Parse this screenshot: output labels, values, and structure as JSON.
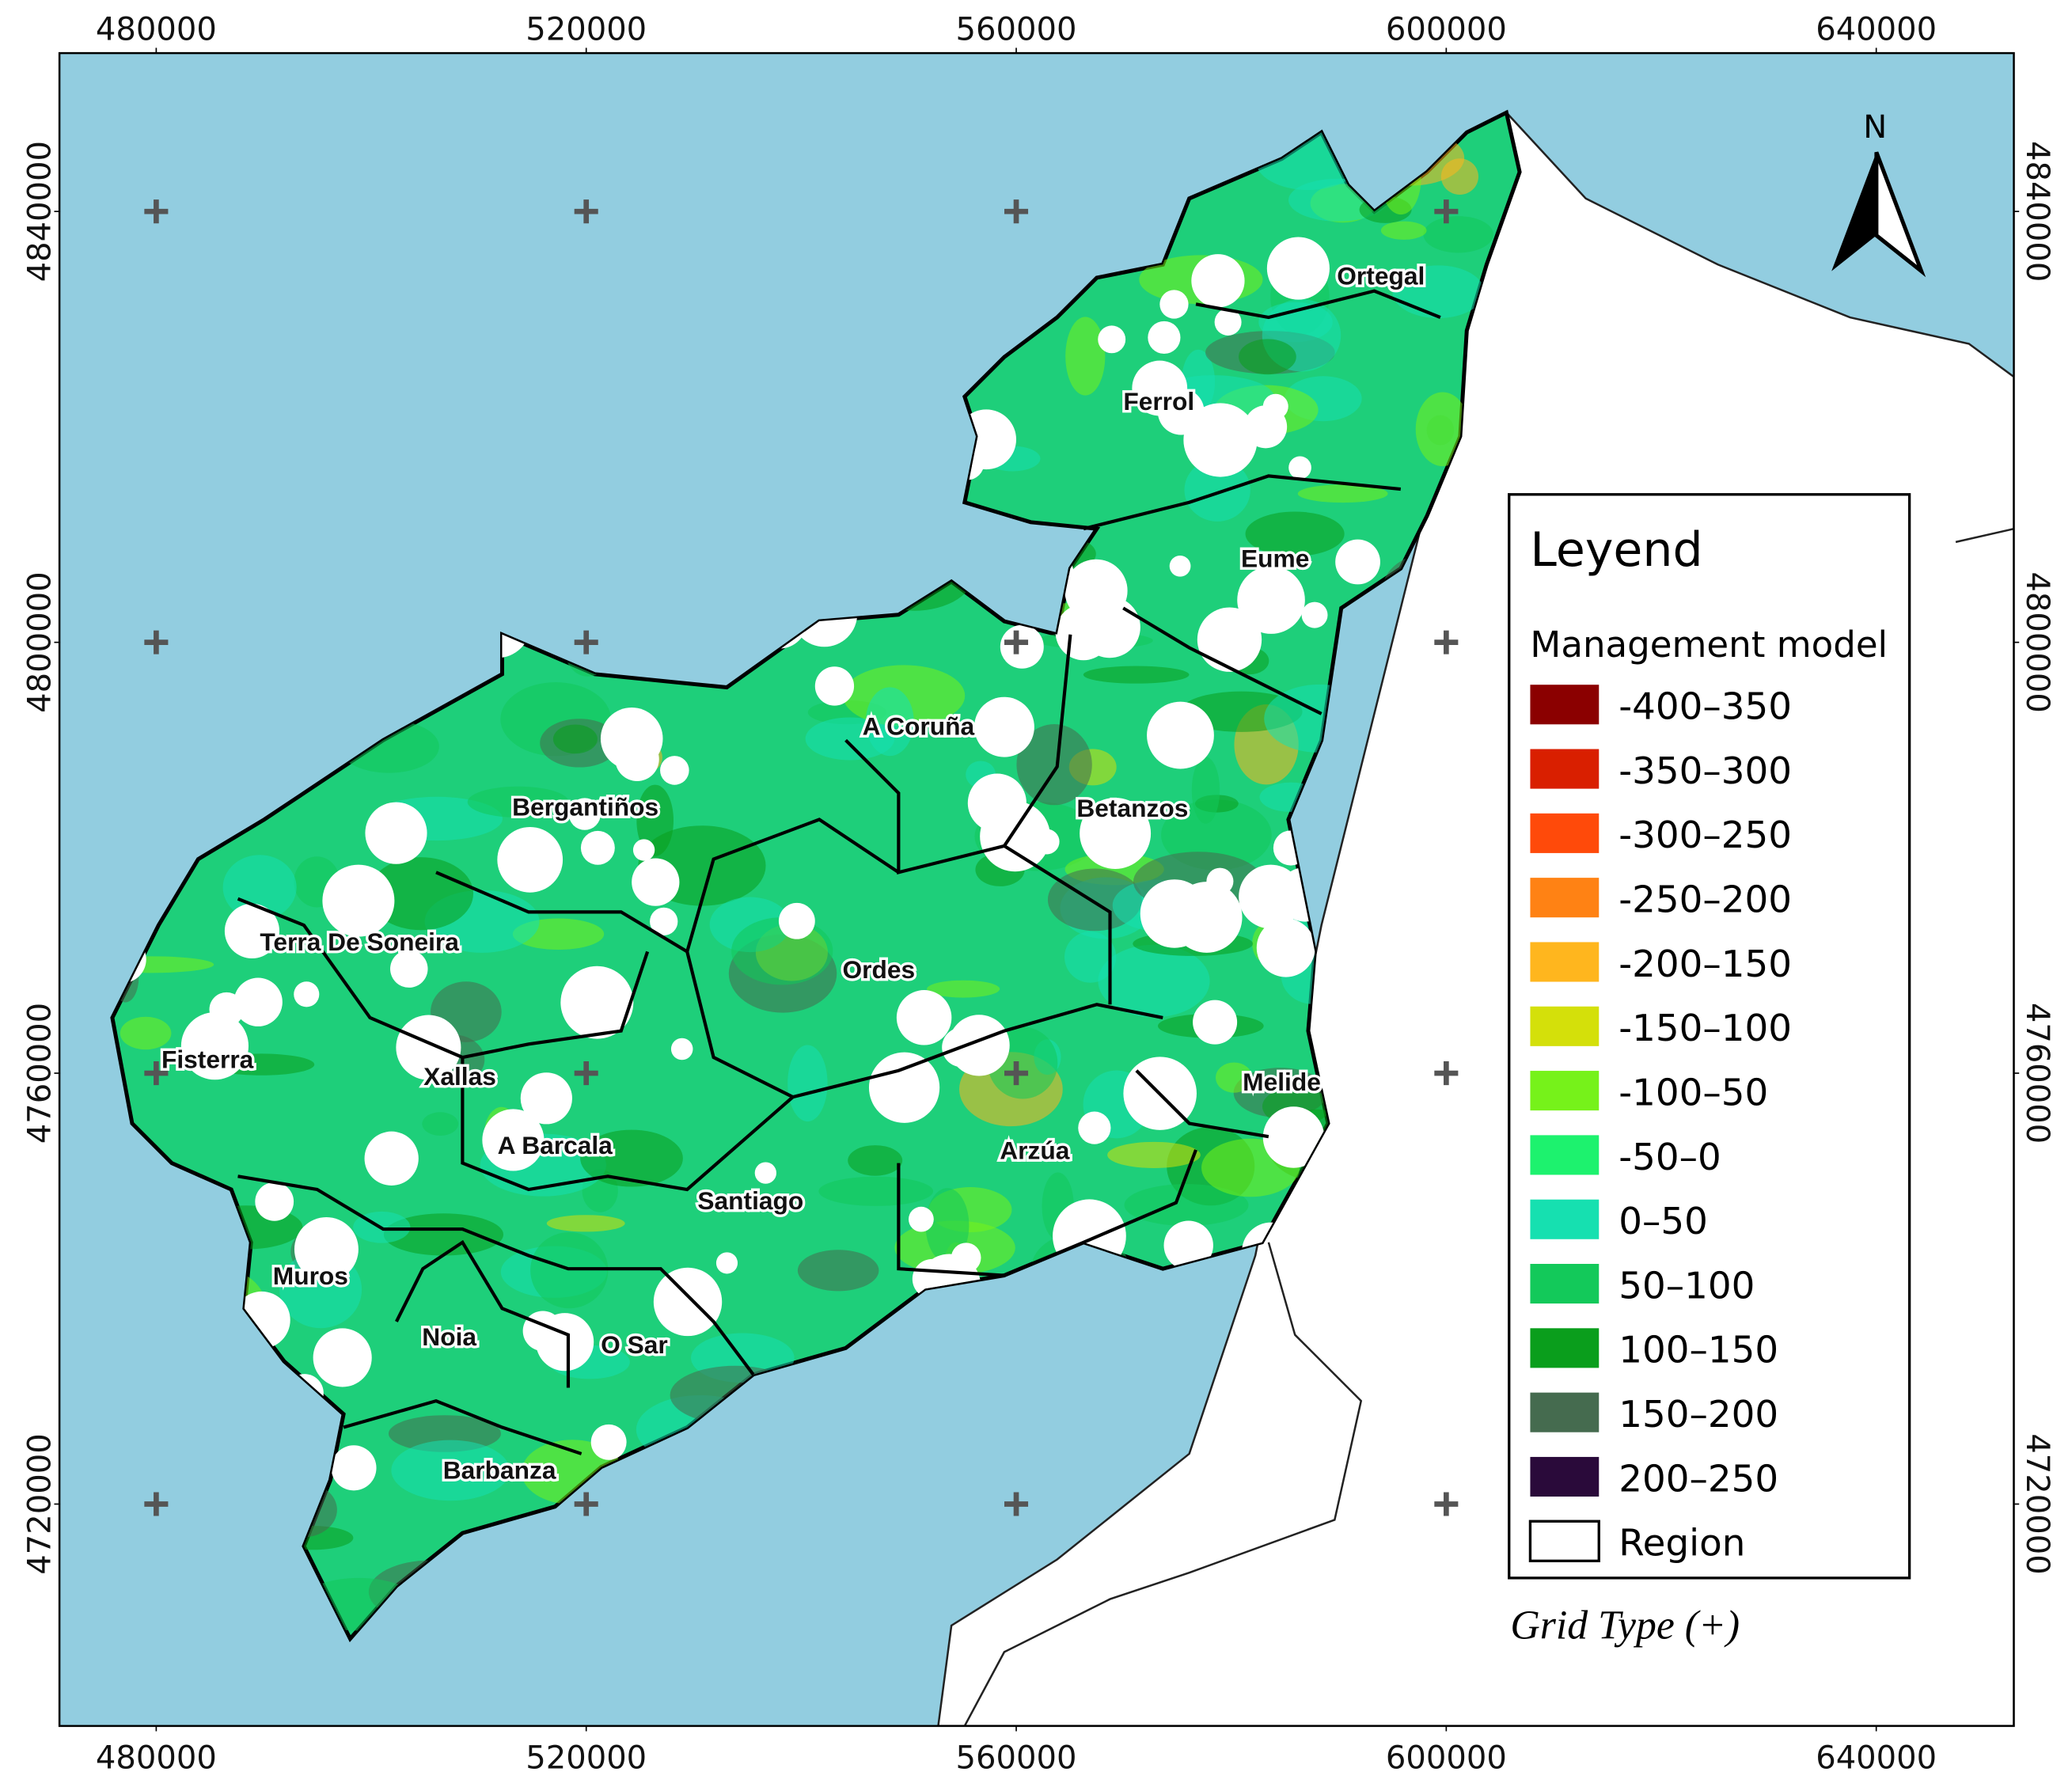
{
  "map": {
    "xlim": [
      471000,
      652800
    ],
    "ylim": [
      4699400,
      4854700
    ],
    "x_ticks": [
      480000,
      520000,
      560000,
      600000,
      640000
    ],
    "y_ticks": [
      4840000,
      4800000,
      4760000,
      4720000
    ],
    "north": "N",
    "regions": [
      "Ortegal",
      "Ferrol",
      "Eume",
      "A Coruña",
      "Betanzos",
      "Bergantiños",
      "Terra De Soneira",
      "Ordes",
      "Fisterra",
      "Xallas",
      "Melide",
      "A Barcala",
      "Arzúa",
      "Santiago",
      "Muros",
      "Noia",
      "O Sar",
      "Barbanza"
    ],
    "legend": {
      "title": "Leyend",
      "subtitle": "Management model",
      "items": [
        {
          "label": "-400–350",
          "color": "#8b0000"
        },
        {
          "label": "-350–300",
          "color": "#d91f00"
        },
        {
          "label": "-300–250",
          "color": "#ff4a0a"
        },
        {
          "label": "-250–200",
          "color": "#ff8214"
        },
        {
          "label": "-200–150",
          "color": "#ffb61e"
        },
        {
          "label": "-150–100",
          "color": "#d4e00a"
        },
        {
          "label": "-100–50",
          "color": "#76f21a"
        },
        {
          "label": "-50–0",
          "color": "#1df26e"
        },
        {
          "label": "0–50",
          "color": "#16e0b0"
        },
        {
          "label": "50–100",
          "color": "#13c95a"
        },
        {
          "label": "100–150",
          "color": "#0a9e1c"
        },
        {
          "label": "150–200",
          "color": "#456b4f"
        },
        {
          "label": "200–250",
          "color": "#2a0a3a"
        }
      ],
      "region_item": "Region"
    },
    "grid_note": "Grid Type (+)"
  }
}
